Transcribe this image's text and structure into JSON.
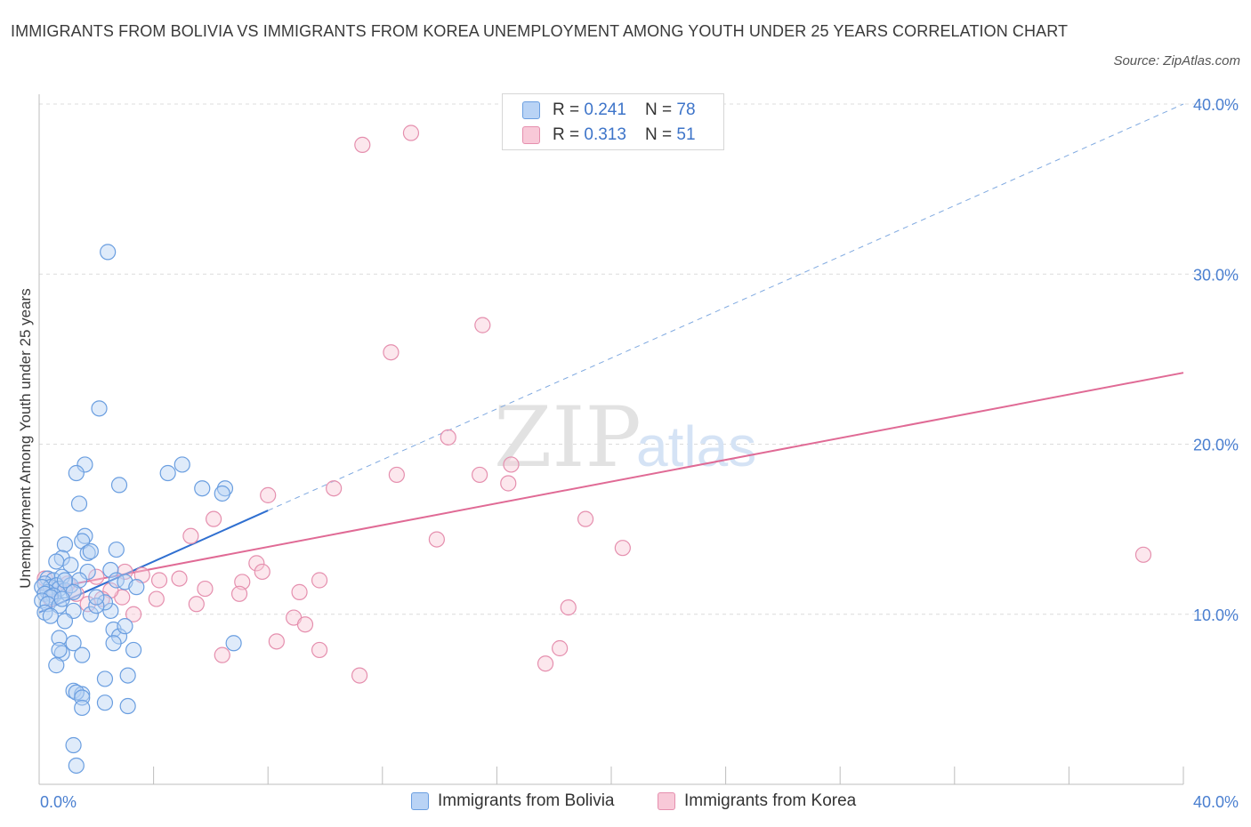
{
  "title": "IMMIGRANTS FROM BOLIVIA VS IMMIGRANTS FROM KOREA UNEMPLOYMENT AMONG YOUTH UNDER 25 YEARS CORRELATION CHART",
  "source": "Source: ZipAtlas.com",
  "watermark": {
    "zip": "ZIP",
    "atlas": "atlas"
  },
  "legend": [
    {
      "r_label": "R = ",
      "r_value": "0.241",
      "n_label": "N = ",
      "n_value": "78"
    },
    {
      "r_label": "R = ",
      "r_value": "0.313",
      "n_label": "N = ",
      "n_value": "51"
    }
  ],
  "colors": {
    "bolivia_fill": "#b9d3f5",
    "bolivia_stroke": "#6a9ee0",
    "bolivia_line": "#2f6fd0",
    "korea_fill": "#f8c9d8",
    "korea_stroke": "#e58fae",
    "korea_line": "#e06a95",
    "tick_text": "#4a7fd0",
    "grid": "#dcdcdc"
  },
  "chart_data": {
    "type": "scatter",
    "xlabel": "",
    "ylabel": "Unemployment Among Youth under 25 years",
    "xlim": [
      0,
      40
    ],
    "ylim": [
      0,
      40
    ],
    "x_tick_labels": [
      "0.0%",
      "40.0%"
    ],
    "y_ticks": [
      10,
      20,
      30,
      40
    ],
    "y_tick_labels": [
      "10.0%",
      "20.0%",
      "30.0%",
      "40.0%"
    ],
    "grid": true,
    "legend_position": "bottom",
    "series": [
      {
        "name": "Immigrants from Bolivia",
        "r": 0.241,
        "n": 78,
        "trend": {
          "x0": 0.0,
          "y0": 10.1,
          "x1": 8.0,
          "y1": 16.1,
          "dashed_to": {
            "x": 40.0,
            "y": 40.0
          }
        },
        "points": [
          [
            2.4,
            31.3
          ],
          [
            2.1,
            22.1
          ],
          [
            1.6,
            18.8
          ],
          [
            1.3,
            18.3
          ],
          [
            2.8,
            17.6
          ],
          [
            4.5,
            18.3
          ],
          [
            5.0,
            18.8
          ],
          [
            5.7,
            17.4
          ],
          [
            6.5,
            17.4
          ],
          [
            6.4,
            17.1
          ],
          [
            1.4,
            16.5
          ],
          [
            0.9,
            14.1
          ],
          [
            1.6,
            14.6
          ],
          [
            1.5,
            14.3
          ],
          [
            2.7,
            13.8
          ],
          [
            0.8,
            13.3
          ],
          [
            1.7,
            13.6
          ],
          [
            0.6,
            13.1
          ],
          [
            1.1,
            12.9
          ],
          [
            1.7,
            12.5
          ],
          [
            2.5,
            12.6
          ],
          [
            0.3,
            12.1
          ],
          [
            0.5,
            12.0
          ],
          [
            0.8,
            12.2
          ],
          [
            0.2,
            11.8
          ],
          [
            0.4,
            11.6
          ],
          [
            0.6,
            11.7
          ],
          [
            0.7,
            11.5
          ],
          [
            0.9,
            11.4
          ],
          [
            0.3,
            11.3
          ],
          [
            0.1,
            11.6
          ],
          [
            1.1,
            11.7
          ],
          [
            0.2,
            11.2
          ],
          [
            0.5,
            11.1
          ],
          [
            0.4,
            11.0
          ],
          [
            0.1,
            10.8
          ],
          [
            0.3,
            10.6
          ],
          [
            0.7,
            10.5
          ],
          [
            0.2,
            10.1
          ],
          [
            1.2,
            10.2
          ],
          [
            0.4,
            9.9
          ],
          [
            1.8,
            10.0
          ],
          [
            2.5,
            10.2
          ],
          [
            0.9,
            9.6
          ],
          [
            2.3,
            10.7
          ],
          [
            2.7,
            12.0
          ],
          [
            3.0,
            11.9
          ],
          [
            2.0,
            10.5
          ],
          [
            2.6,
            9.1
          ],
          [
            2.8,
            8.7
          ],
          [
            3.0,
            9.3
          ],
          [
            0.7,
            8.6
          ],
          [
            1.2,
            8.3
          ],
          [
            2.6,
            8.3
          ],
          [
            0.8,
            7.7
          ],
          [
            0.7,
            7.9
          ],
          [
            1.5,
            7.6
          ],
          [
            3.3,
            7.9
          ],
          [
            0.6,
            7.0
          ],
          [
            6.8,
            8.3
          ],
          [
            2.3,
            6.2
          ],
          [
            3.1,
            6.4
          ],
          [
            1.2,
            5.5
          ],
          [
            1.5,
            5.3
          ],
          [
            1.3,
            5.4
          ],
          [
            1.5,
            5.1
          ],
          [
            2.3,
            4.8
          ],
          [
            3.1,
            4.6
          ],
          [
            1.5,
            4.5
          ],
          [
            1.2,
            2.3
          ],
          [
            1.3,
            1.1
          ],
          [
            1.8,
            13.7
          ],
          [
            1.4,
            12.0
          ],
          [
            0.9,
            12.0
          ],
          [
            1.2,
            11.3
          ],
          [
            3.4,
            11.6
          ],
          [
            2.0,
            11.0
          ],
          [
            0.8,
            10.9
          ]
        ]
      },
      {
        "name": "Immigrants from Korea",
        "r": 0.313,
        "n": 51,
        "trend": {
          "x0": 0.0,
          "y0": 11.4,
          "x1": 40.0,
          "y1": 24.2
        },
        "points": [
          [
            18.9,
            40.0
          ],
          [
            13.0,
            38.3
          ],
          [
            11.3,
            37.6
          ],
          [
            15.5,
            27.0
          ],
          [
            12.3,
            25.4
          ],
          [
            14.3,
            20.4
          ],
          [
            16.5,
            18.8
          ],
          [
            12.5,
            18.2
          ],
          [
            15.4,
            18.2
          ],
          [
            10.3,
            17.4
          ],
          [
            16.4,
            17.7
          ],
          [
            8.0,
            17.0
          ],
          [
            19.1,
            15.6
          ],
          [
            6.1,
            15.6
          ],
          [
            5.3,
            14.6
          ],
          [
            13.9,
            14.4
          ],
          [
            20.4,
            13.9
          ],
          [
            38.6,
            13.5
          ],
          [
            7.6,
            13.0
          ],
          [
            7.8,
            12.5
          ],
          [
            3.0,
            12.5
          ],
          [
            2.0,
            12.2
          ],
          [
            3.6,
            12.3
          ],
          [
            4.2,
            12.0
          ],
          [
            4.9,
            12.1
          ],
          [
            9.8,
            12.0
          ],
          [
            7.1,
            11.9
          ],
          [
            5.8,
            11.5
          ],
          [
            7.0,
            11.2
          ],
          [
            9.1,
            11.3
          ],
          [
            4.1,
            10.9
          ],
          [
            2.9,
            11.0
          ],
          [
            5.5,
            10.6
          ],
          [
            18.5,
            10.4
          ],
          [
            1.7,
            10.6
          ],
          [
            0.4,
            10.9
          ],
          [
            3.3,
            10.0
          ],
          [
            8.9,
            9.8
          ],
          [
            9.3,
            9.4
          ],
          [
            8.3,
            8.4
          ],
          [
            18.2,
            8.0
          ],
          [
            9.8,
            7.9
          ],
          [
            6.4,
            7.6
          ],
          [
            17.7,
            7.1
          ],
          [
            11.2,
            6.4
          ],
          [
            0.2,
            12.1
          ],
          [
            0.5,
            11.5
          ],
          [
            1.3,
            11.2
          ],
          [
            2.5,
            11.4
          ],
          [
            1.0,
            11.8
          ],
          [
            2.2,
            10.9
          ]
        ]
      }
    ]
  }
}
